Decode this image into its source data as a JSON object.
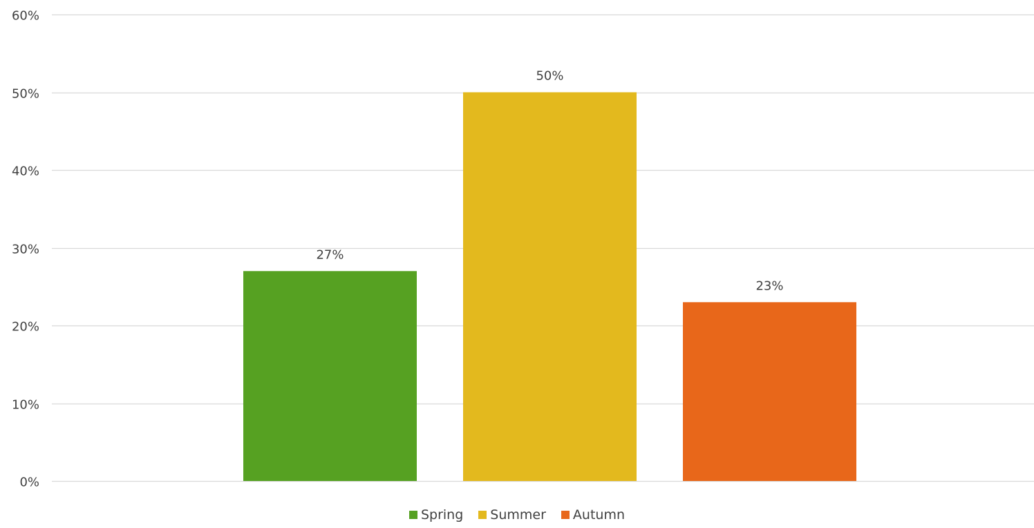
{
  "chart_data": {
    "type": "bar",
    "categories": [
      "Spring",
      "Summer",
      "Autumn"
    ],
    "values": [
      0.27,
      0.5,
      0.23
    ],
    "data_labels": [
      "27%",
      "50%",
      "23%"
    ],
    "colors": [
      "#56a122",
      "#e3b91e",
      "#e8671a"
    ],
    "ylim": [
      0,
      0.6
    ],
    "yticks": [
      0,
      0.1,
      0.2,
      0.3,
      0.4,
      0.5,
      0.6
    ],
    "ytick_labels": [
      "0%",
      "10%",
      "20%",
      "30%",
      "40%",
      "50%",
      "60%"
    ],
    "grid": true,
    "gridline_color": "#d9d9d9",
    "legend_position": "bottom",
    "legend": [
      {
        "label": "Spring",
        "color": "#56a122"
      },
      {
        "label": "Summer",
        "color": "#e3b91e"
      },
      {
        "label": "Autumn",
        "color": "#e8671a"
      }
    ]
  }
}
